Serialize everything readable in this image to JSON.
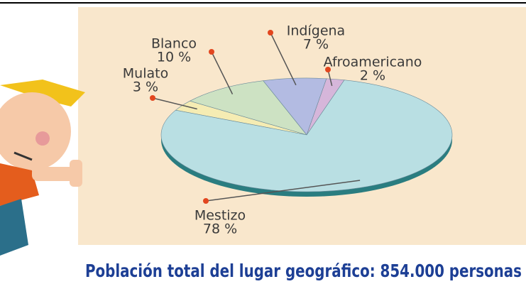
{
  "chart_data": {
    "type": "pie",
    "categories": [
      "Afroamericano",
      "Indígena",
      "Blanco",
      "Mulato",
      "Mestizo"
    ],
    "values": [
      2,
      7,
      10,
      3,
      78
    ],
    "value_labels": [
      "2 %",
      "7 %",
      "10 %",
      "3 %",
      "78 %"
    ],
    "colors": [
      "#d6b6da",
      "#b3bbe2",
      "#cde2c3",
      "#f5ecb3",
      "#b9dfe3"
    ],
    "caption": "Población total del lugar geográfico: 854.000 personas"
  }
}
